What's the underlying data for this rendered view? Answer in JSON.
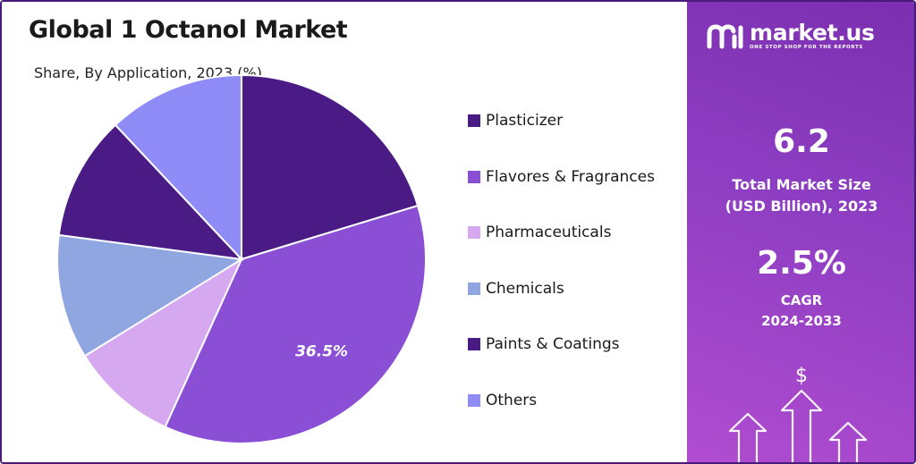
{
  "title": "Global 1 Octanol Market",
  "subtitle": "Share, By Application, 2023 (%)",
  "chart_data": {
    "type": "pie",
    "title": "Global 1 Octanol Market",
    "subtitle": "Share, By Application, 2023 (%)",
    "legend_position": "right",
    "slices": [
      {
        "label": "Plasticizer",
        "value": 20.3,
        "color": "#4a1a85"
      },
      {
        "label": "Flavores & Fragrances",
        "value": 36.5,
        "color": "#8a4fd4",
        "data_label": "36.5%"
      },
      {
        "label": "Pharmaceuticals",
        "value": 9.4,
        "color": "#d6a8f0"
      },
      {
        "label": "Chemicals",
        "value": 10.9,
        "color": "#8fa6e0"
      },
      {
        "label": "Paints & Coatings",
        "value": 10.9,
        "color": "#4a1a85"
      },
      {
        "label": "Others",
        "value": 12.0,
        "color": "#8f8cf7"
      }
    ]
  },
  "legend": [
    {
      "label": "Plasticizer",
      "color": "#4a1a85"
    },
    {
      "label": "Flavores & Fragrances",
      "color": "#8a4fd4"
    },
    {
      "label": "Pharmaceuticals",
      "color": "#d6a8f0"
    },
    {
      "label": "Chemicals",
      "color": "#8fa6e0"
    },
    {
      "label": "Paints & Coatings",
      "color": "#4a1a85"
    },
    {
      "label": "Others",
      "color": "#8f8cf7"
    }
  ],
  "brand": {
    "name": "market.us",
    "tagline": "ONE STOP SHOP FOR THE REPORTS"
  },
  "stats": {
    "market_size_value": "6.2",
    "market_size_label_1": "Total Market Size",
    "market_size_label_2": "(USD Billion), 2023",
    "cagr_value": "2.5%",
    "cagr_label_1": "CAGR",
    "cagr_label_2": "2024-2033"
  },
  "icons": {
    "dollar": "$",
    "brand_logo": "market-us-logo-icon",
    "arrows": "growth-arrows-icon"
  }
}
